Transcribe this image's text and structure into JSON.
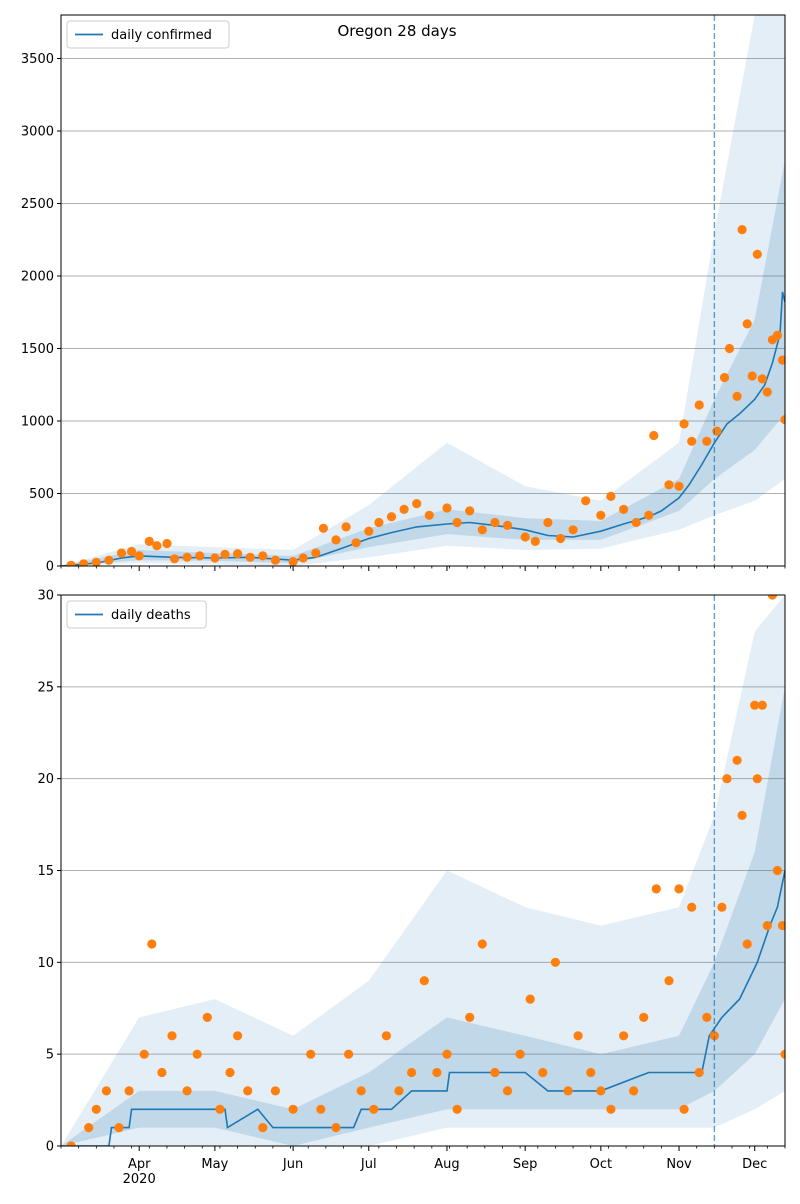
{
  "figure_title": "Oregon 28 days",
  "colors": {
    "line": "#1f77b4",
    "points": "#ff7f0e",
    "band": "#1f77b4",
    "grid": "#b0b0b0",
    "vline": "#1f77b4"
  },
  "x_axis": {
    "start": "2020-03-01",
    "end": "2020-12-13",
    "ticks": [
      {
        "date": "2020-04-01",
        "label": "Apr",
        "sublabel": "2020"
      },
      {
        "date": "2020-05-01",
        "label": "May",
        "sublabel": ""
      },
      {
        "date": "2020-06-01",
        "label": "Jun",
        "sublabel": ""
      },
      {
        "date": "2020-07-01",
        "label": "Jul",
        "sublabel": ""
      },
      {
        "date": "2020-08-01",
        "label": "Aug",
        "sublabel": ""
      },
      {
        "date": "2020-09-01",
        "label": "Sep",
        "sublabel": ""
      },
      {
        "date": "2020-10-01",
        "label": "Oct",
        "sublabel": ""
      },
      {
        "date": "2020-11-01",
        "label": "Nov",
        "sublabel": ""
      },
      {
        "date": "2020-12-01",
        "label": "Dec",
        "sublabel": ""
      }
    ],
    "forecast_start": "2020-11-15"
  },
  "chart_data": [
    {
      "type": "line",
      "legend": "daily confirmed",
      "legend_position": "top-left",
      "grid": "horizontal",
      "ylim": [
        0,
        3800
      ],
      "yticks": [
        0,
        500,
        1000,
        1500,
        2000,
        2500,
        3000,
        3500
      ],
      "series_line": [
        [
          "2020-03-01",
          0
        ],
        [
          "2020-03-15",
          20
        ],
        [
          "2020-03-25",
          55
        ],
        [
          "2020-04-01",
          70
        ],
        [
          "2020-04-15",
          60
        ],
        [
          "2020-05-01",
          55
        ],
        [
          "2020-05-15",
          60
        ],
        [
          "2020-06-01",
          40
        ],
        [
          "2020-06-10",
          60
        ],
        [
          "2020-06-20",
          120
        ],
        [
          "2020-07-01",
          190
        ],
        [
          "2020-07-10",
          230
        ],
        [
          "2020-07-20",
          270
        ],
        [
          "2020-08-01",
          290
        ],
        [
          "2020-08-10",
          300
        ],
        [
          "2020-08-20",
          280
        ],
        [
          "2020-09-01",
          250
        ],
        [
          "2020-09-10",
          210
        ],
        [
          "2020-09-20",
          200
        ],
        [
          "2020-10-01",
          240
        ],
        [
          "2020-10-10",
          290
        ],
        [
          "2020-10-20",
          340
        ],
        [
          "2020-10-25",
          380
        ],
        [
          "2020-11-01",
          470
        ],
        [
          "2020-11-05",
          560
        ],
        [
          "2020-11-10",
          700
        ],
        [
          "2020-11-15",
          850
        ],
        [
          "2020-11-20",
          980
        ],
        [
          "2020-11-25",
          1050
        ],
        [
          "2020-12-01",
          1150
        ],
        [
          "2020-12-05",
          1250
        ],
        [
          "2020-12-08",
          1400
        ],
        [
          "2020-12-11",
          1600
        ],
        [
          "2020-12-12",
          1890
        ],
        [
          "2020-12-13",
          1820
        ]
      ],
      "band_inner_lower": [
        [
          "2020-03-01",
          0
        ],
        [
          "2020-04-01",
          40
        ],
        [
          "2020-05-01",
          35
        ],
        [
          "2020-06-01",
          20
        ],
        [
          "2020-07-01",
          130
        ],
        [
          "2020-08-01",
          220
        ],
        [
          "2020-09-01",
          180
        ],
        [
          "2020-10-01",
          180
        ],
        [
          "2020-11-01",
          380
        ],
        [
          "2020-11-15",
          600
        ],
        [
          "2020-12-01",
          800
        ],
        [
          "2020-12-13",
          1050
        ]
      ],
      "band_inner_upper": [
        [
          "2020-03-01",
          0
        ],
        [
          "2020-04-01",
          110
        ],
        [
          "2020-05-01",
          90
        ],
        [
          "2020-06-01",
          70
        ],
        [
          "2020-07-01",
          260
        ],
        [
          "2020-08-01",
          390
        ],
        [
          "2020-09-01",
          330
        ],
        [
          "2020-10-01",
          310
        ],
        [
          "2020-11-01",
          600
        ],
        [
          "2020-11-15",
          1150
        ],
        [
          "2020-12-01",
          1700
        ],
        [
          "2020-12-13",
          2800
        ]
      ],
      "band_outer_lower": [
        [
          "2020-03-01",
          0
        ],
        [
          "2020-04-01",
          20
        ],
        [
          "2020-05-01",
          10
        ],
        [
          "2020-06-01",
          0
        ],
        [
          "2020-07-01",
          60
        ],
        [
          "2020-08-01",
          140
        ],
        [
          "2020-09-01",
          110
        ],
        [
          "2020-10-01",
          120
        ],
        [
          "2020-11-01",
          250
        ],
        [
          "2020-11-15",
          350
        ],
        [
          "2020-12-01",
          450
        ],
        [
          "2020-12-13",
          600
        ]
      ],
      "band_outer_upper": [
        [
          "2020-03-01",
          0
        ],
        [
          "2020-04-01",
          150
        ],
        [
          "2020-05-01",
          130
        ],
        [
          "2020-06-01",
          110
        ],
        [
          "2020-07-01",
          420
        ],
        [
          "2020-08-01",
          850
        ],
        [
          "2020-09-01",
          550
        ],
        [
          "2020-10-01",
          450
        ],
        [
          "2020-11-01",
          850
        ],
        [
          "2020-11-15",
          2300
        ],
        [
          "2020-12-01",
          3800
        ],
        [
          "2020-12-13",
          3800
        ]
      ],
      "points": [
        [
          "2020-03-05",
          5
        ],
        [
          "2020-03-10",
          15
        ],
        [
          "2020-03-15",
          25
        ],
        [
          "2020-03-20",
          40
        ],
        [
          "2020-03-25",
          90
        ],
        [
          "2020-03-29",
          100
        ],
        [
          "2020-04-01",
          70
        ],
        [
          "2020-04-05",
          170
        ],
        [
          "2020-04-08",
          140
        ],
        [
          "2020-04-12",
          155
        ],
        [
          "2020-04-15",
          50
        ],
        [
          "2020-04-20",
          60
        ],
        [
          "2020-04-25",
          70
        ],
        [
          "2020-05-01",
          55
        ],
        [
          "2020-05-05",
          80
        ],
        [
          "2020-05-10",
          85
        ],
        [
          "2020-05-15",
          60
        ],
        [
          "2020-05-20",
          70
        ],
        [
          "2020-05-25",
          40
        ],
        [
          "2020-06-01",
          30
        ],
        [
          "2020-06-05",
          55
        ],
        [
          "2020-06-10",
          90
        ],
        [
          "2020-06-13",
          260
        ],
        [
          "2020-06-18",
          180
        ],
        [
          "2020-06-22",
          270
        ],
        [
          "2020-06-26",
          160
        ],
        [
          "2020-07-01",
          240
        ],
        [
          "2020-07-05",
          300
        ],
        [
          "2020-07-10",
          340
        ],
        [
          "2020-07-15",
          390
        ],
        [
          "2020-07-20",
          430
        ],
        [
          "2020-07-25",
          350
        ],
        [
          "2020-08-01",
          400
        ],
        [
          "2020-08-05",
          300
        ],
        [
          "2020-08-10",
          380
        ],
        [
          "2020-08-15",
          250
        ],
        [
          "2020-08-20",
          300
        ],
        [
          "2020-08-25",
          280
        ],
        [
          "2020-09-01",
          200
        ],
        [
          "2020-09-05",
          170
        ],
        [
          "2020-09-10",
          300
        ],
        [
          "2020-09-15",
          190
        ],
        [
          "2020-09-20",
          250
        ],
        [
          "2020-09-25",
          450
        ],
        [
          "2020-10-01",
          350
        ],
        [
          "2020-10-05",
          480
        ],
        [
          "2020-10-10",
          390
        ],
        [
          "2020-10-15",
          300
        ],
        [
          "2020-10-20",
          350
        ],
        [
          "2020-10-22",
          900
        ],
        [
          "2020-10-28",
          560
        ],
        [
          "2020-11-01",
          550
        ],
        [
          "2020-11-03",
          980
        ],
        [
          "2020-11-06",
          860
        ],
        [
          "2020-11-09",
          1110
        ],
        [
          "2020-11-12",
          860
        ],
        [
          "2020-11-16",
          930
        ],
        [
          "2020-11-19",
          1300
        ],
        [
          "2020-11-21",
          1500
        ],
        [
          "2020-11-24",
          1170
        ],
        [
          "2020-11-26",
          2320
        ],
        [
          "2020-11-28",
          1670
        ],
        [
          "2020-11-30",
          1310
        ],
        [
          "2020-12-02",
          2150
        ],
        [
          "2020-12-04",
          1290
        ],
        [
          "2020-12-06",
          1200
        ],
        [
          "2020-12-08",
          1560
        ],
        [
          "2020-12-10",
          1590
        ],
        [
          "2020-12-12",
          1420
        ],
        [
          "2020-12-13",
          1010
        ]
      ]
    },
    {
      "type": "line",
      "legend": "daily deaths",
      "legend_position": "top-left",
      "grid": "horizontal",
      "ylim": [
        0,
        30
      ],
      "yticks": [
        0,
        5,
        10,
        15,
        20,
        25,
        30
      ],
      "series_line": [
        [
          "2020-03-01",
          0
        ],
        [
          "2020-03-20",
          0
        ],
        [
          "2020-03-21",
          1
        ],
        [
          "2020-03-28",
          1
        ],
        [
          "2020-03-29",
          2
        ],
        [
          "2020-05-05",
          2
        ],
        [
          "2020-05-06",
          1
        ],
        [
          "2020-05-18",
          2
        ],
        [
          "2020-05-24",
          1
        ],
        [
          "2020-06-25",
          1
        ],
        [
          "2020-06-28",
          2
        ],
        [
          "2020-07-10",
          2
        ],
        [
          "2020-07-18",
          3
        ],
        [
          "2020-08-01",
          3
        ],
        [
          "2020-08-02",
          4
        ],
        [
          "2020-09-01",
          4
        ],
        [
          "2020-09-10",
          3
        ],
        [
          "2020-10-01",
          3
        ],
        [
          "2020-10-20",
          4
        ],
        [
          "2020-11-10",
          4
        ],
        [
          "2020-11-13",
          6
        ],
        [
          "2020-11-18",
          7
        ],
        [
          "2020-11-25",
          8
        ],
        [
          "2020-12-02",
          10
        ],
        [
          "2020-12-07",
          12
        ],
        [
          "2020-12-10",
          13
        ],
        [
          "2020-12-13",
          15
        ]
      ],
      "band_inner_lower": [
        [
          "2020-03-01",
          0
        ],
        [
          "2020-04-01",
          1
        ],
        [
          "2020-05-01",
          1
        ],
        [
          "2020-06-01",
          0
        ],
        [
          "2020-07-01",
          1
        ],
        [
          "2020-08-01",
          2
        ],
        [
          "2020-09-01",
          2
        ],
        [
          "2020-10-01",
          2
        ],
        [
          "2020-11-01",
          2
        ],
        [
          "2020-11-15",
          3
        ],
        [
          "2020-12-01",
          5
        ],
        [
          "2020-12-13",
          8
        ]
      ],
      "band_inner_upper": [
        [
          "2020-03-01",
          0
        ],
        [
          "2020-04-01",
          3
        ],
        [
          "2020-05-01",
          3
        ],
        [
          "2020-06-01",
          2
        ],
        [
          "2020-07-01",
          4
        ],
        [
          "2020-08-01",
          7
        ],
        [
          "2020-09-01",
          6
        ],
        [
          "2020-10-01",
          5
        ],
        [
          "2020-11-01",
          6
        ],
        [
          "2020-11-15",
          10
        ],
        [
          "2020-12-01",
          16
        ],
        [
          "2020-12-13",
          25
        ]
      ],
      "band_outer_lower": [
        [
          "2020-03-01",
          0
        ],
        [
          "2020-04-01",
          0
        ],
        [
          "2020-05-01",
          0
        ],
        [
          "2020-06-01",
          0
        ],
        [
          "2020-07-01",
          0
        ],
        [
          "2020-08-01",
          1
        ],
        [
          "2020-09-01",
          1
        ],
        [
          "2020-10-01",
          1
        ],
        [
          "2020-11-01",
          1
        ],
        [
          "2020-11-15",
          1
        ],
        [
          "2020-12-01",
          2
        ],
        [
          "2020-12-13",
          3
        ]
      ],
      "band_outer_upper": [
        [
          "2020-03-01",
          0
        ],
        [
          "2020-04-01",
          7
        ],
        [
          "2020-05-01",
          8
        ],
        [
          "2020-06-01",
          6
        ],
        [
          "2020-07-01",
          9
        ],
        [
          "2020-08-01",
          15
        ],
        [
          "2020-09-01",
          13
        ],
        [
          "2020-10-01",
          12
        ],
        [
          "2020-11-01",
          13
        ],
        [
          "2020-11-15",
          18
        ],
        [
          "2020-12-01",
          28
        ],
        [
          "2020-12-13",
          30
        ]
      ],
      "points": [
        [
          "2020-03-05",
          0
        ],
        [
          "2020-03-12",
          1
        ],
        [
          "2020-03-15",
          2
        ],
        [
          "2020-03-19",
          3
        ],
        [
          "2020-03-24",
          1
        ],
        [
          "2020-03-28",
          3
        ],
        [
          "2020-04-03",
          5
        ],
        [
          "2020-04-06",
          11
        ],
        [
          "2020-04-10",
          4
        ],
        [
          "2020-04-14",
          6
        ],
        [
          "2020-04-20",
          3
        ],
        [
          "2020-04-24",
          5
        ],
        [
          "2020-04-28",
          7
        ],
        [
          "2020-05-03",
          2
        ],
        [
          "2020-05-07",
          4
        ],
        [
          "2020-05-10",
          6
        ],
        [
          "2020-05-14",
          3
        ],
        [
          "2020-05-20",
          1
        ],
        [
          "2020-05-25",
          3
        ],
        [
          "2020-06-01",
          2
        ],
        [
          "2020-06-08",
          5
        ],
        [
          "2020-06-12",
          2
        ],
        [
          "2020-06-18",
          1
        ],
        [
          "2020-06-23",
          5
        ],
        [
          "2020-06-28",
          3
        ],
        [
          "2020-07-03",
          2
        ],
        [
          "2020-07-08",
          6
        ],
        [
          "2020-07-13",
          3
        ],
        [
          "2020-07-18",
          4
        ],
        [
          "2020-07-23",
          9
        ],
        [
          "2020-07-28",
          4
        ],
        [
          "2020-08-01",
          5
        ],
        [
          "2020-08-05",
          2
        ],
        [
          "2020-08-10",
          7
        ],
        [
          "2020-08-15",
          11
        ],
        [
          "2020-08-20",
          4
        ],
        [
          "2020-08-25",
          3
        ],
        [
          "2020-08-30",
          5
        ],
        [
          "2020-09-03",
          8
        ],
        [
          "2020-09-08",
          4
        ],
        [
          "2020-09-13",
          10
        ],
        [
          "2020-09-18",
          3
        ],
        [
          "2020-09-22",
          6
        ],
        [
          "2020-09-27",
          4
        ],
        [
          "2020-10-01",
          3
        ],
        [
          "2020-10-05",
          2
        ],
        [
          "2020-10-10",
          6
        ],
        [
          "2020-10-14",
          3
        ],
        [
          "2020-10-18",
          7
        ],
        [
          "2020-10-23",
          14
        ],
        [
          "2020-10-28",
          9
        ],
        [
          "2020-11-01",
          14
        ],
        [
          "2020-11-03",
          2
        ],
        [
          "2020-11-06",
          13
        ],
        [
          "2020-11-09",
          4
        ],
        [
          "2020-11-12",
          7
        ],
        [
          "2020-11-15",
          6
        ],
        [
          "2020-11-18",
          13
        ],
        [
          "2020-11-20",
          20
        ],
        [
          "2020-11-24",
          21
        ],
        [
          "2020-11-26",
          18
        ],
        [
          "2020-11-28",
          11
        ],
        [
          "2020-12-01",
          24
        ],
        [
          "2020-12-02",
          20
        ],
        [
          "2020-12-04",
          24
        ],
        [
          "2020-12-06",
          12
        ],
        [
          "2020-12-08",
          30
        ],
        [
          "2020-12-10",
          15
        ],
        [
          "2020-12-12",
          12
        ],
        [
          "2020-12-13",
          5
        ]
      ]
    }
  ]
}
